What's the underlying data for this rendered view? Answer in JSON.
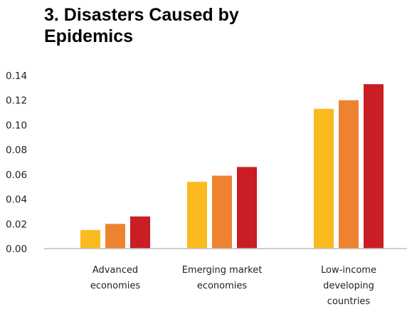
{
  "chart_data": {
    "type": "bar",
    "title_lines": [
      "3. Disasters Caused by",
      "Epidemics"
    ],
    "categories": [
      [
        "Advanced",
        "economies"
      ],
      [
        "Emerging market",
        "economies"
      ],
      [
        "Low-income",
        "developing",
        "countries"
      ]
    ],
    "series": [
      {
        "color": "#FBBA1E",
        "values": [
          0.015,
          0.054,
          0.113
        ]
      },
      {
        "color": "#ED8331",
        "values": [
          0.02,
          0.059,
          0.12
        ]
      },
      {
        "color": "#C81E24",
        "values": [
          0.026,
          0.066,
          0.133
        ]
      }
    ],
    "ylim": [
      0,
      0.14
    ],
    "yticks": [
      "0.00",
      "0.02",
      "0.04",
      "0.06",
      "0.08",
      "0.10",
      "0.12",
      "0.14"
    ],
    "grid": false,
    "legend": "none",
    "axis_color": "#BFBFBF"
  }
}
